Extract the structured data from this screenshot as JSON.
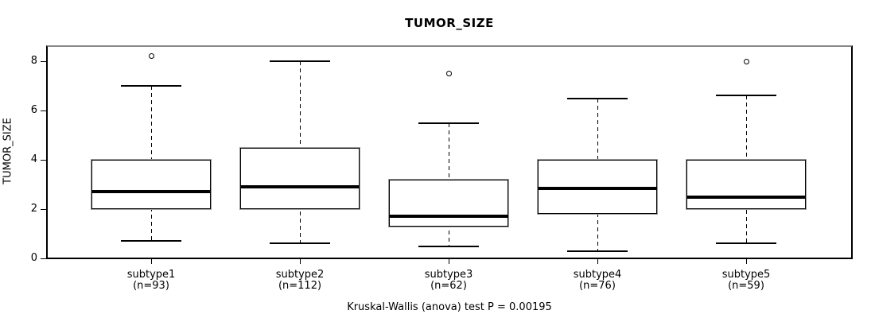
{
  "colors": {
    "line": "#000000",
    "frame_top_shadow": "#888888",
    "box_outline_shadow": "#999999",
    "background": "#ffffff"
  },
  "chart_data": {
    "type": "boxplot",
    "title": "TUMOR_SIZE",
    "ylabel": "TUMOR_SIZE",
    "xlabel": "",
    "footer": "Kruskal-Wallis (anova) test P = 0.00195",
    "ylim": [
      0,
      8.6
    ],
    "yticks": [
      0,
      2,
      4,
      6,
      8
    ],
    "grid": false,
    "legend": "none",
    "groups": [
      {
        "label": "subtype1",
        "n_label": "(n=93)",
        "n": 93,
        "whisker_low": 0.7,
        "q1": 2.0,
        "median": 2.7,
        "q3": 4.0,
        "whisker_high": 7.0,
        "outliers": [
          8.2
        ]
      },
      {
        "label": "subtype2",
        "n_label": "(n=112)",
        "n": 112,
        "whisker_low": 0.6,
        "q1": 2.0,
        "median": 2.9,
        "q3": 4.5,
        "whisker_high": 8.0,
        "outliers": []
      },
      {
        "label": "subtype3",
        "n_label": "(n=62)",
        "n": 62,
        "whisker_low": 0.5,
        "q1": 1.3,
        "median": 1.7,
        "q3": 3.2,
        "whisker_high": 5.5,
        "outliers": [
          7.5
        ]
      },
      {
        "label": "subtype4",
        "n_label": "(n=76)",
        "n": 76,
        "whisker_low": 0.3,
        "q1": 1.8,
        "median": 2.85,
        "q3": 4.0,
        "whisker_high": 6.5,
        "outliers": []
      },
      {
        "label": "subtype5",
        "n_label": "(n=59)",
        "n": 59,
        "whisker_low": 0.6,
        "q1": 2.0,
        "median": 2.5,
        "q3": 4.0,
        "whisker_high": 6.6,
        "outliers": [
          8.0
        ]
      }
    ]
  }
}
